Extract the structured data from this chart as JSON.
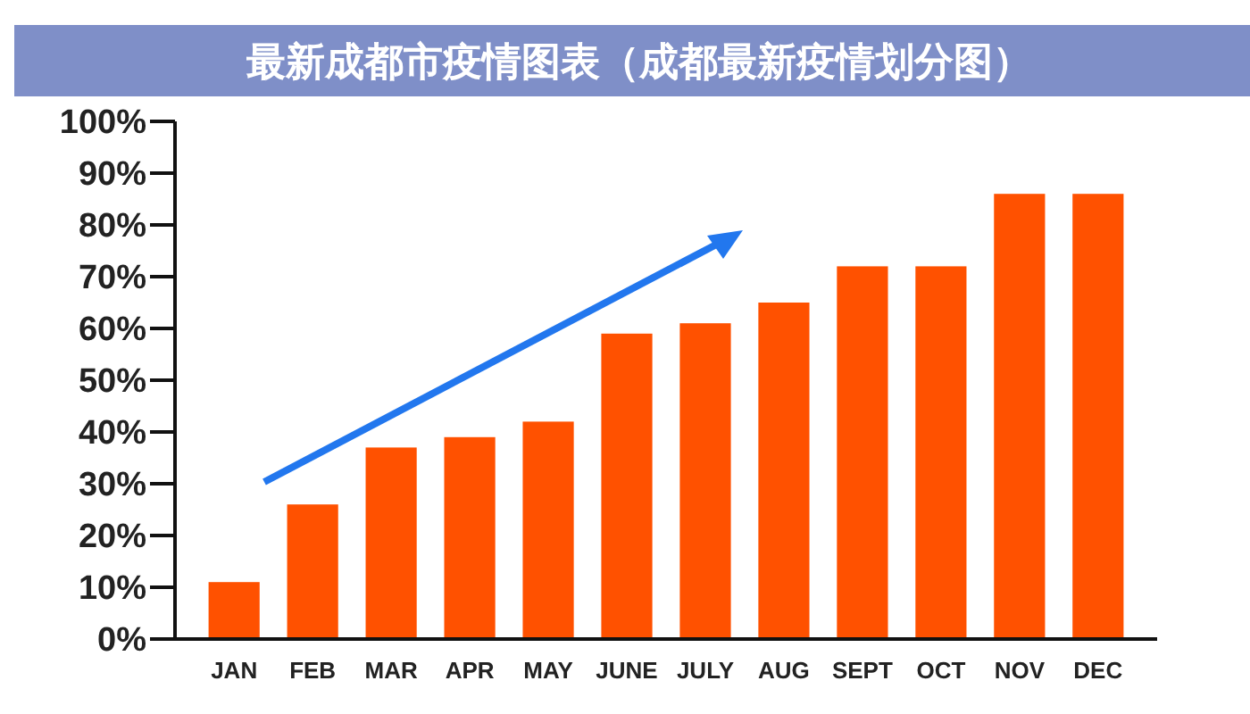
{
  "chart_data": {
    "type": "bar",
    "title": "最新成都市疫情图表（成都最新疫情划分图）",
    "categories": [
      "JAN",
      "FEB",
      "MAR",
      "APR",
      "MAY",
      "JUNE",
      "JULY",
      "AUG",
      "SEPT",
      "OCT",
      "NOV",
      "DEC"
    ],
    "values": [
      11,
      26,
      37,
      39,
      42,
      59,
      61,
      65,
      72,
      72,
      86,
      86
    ],
    "color": "#ff5100",
    "ylim": [
      0,
      100
    ],
    "yticks": [
      {
        "value": 0,
        "label": "0%"
      },
      {
        "value": 10,
        "label": "10%"
      },
      {
        "value": 20,
        "label": "20%"
      },
      {
        "value": 30,
        "label": "30%"
      },
      {
        "value": 40,
        "label": "40%"
      },
      {
        "value": 50,
        "label": "50%"
      },
      {
        "value": 60,
        "label": "60%"
      },
      {
        "value": 70,
        "label": "70%"
      },
      {
        "value": 80,
        "label": "80%"
      },
      {
        "value": 90,
        "label": "90%"
      },
      {
        "value": 100,
        "label": "100%"
      }
    ]
  }
}
